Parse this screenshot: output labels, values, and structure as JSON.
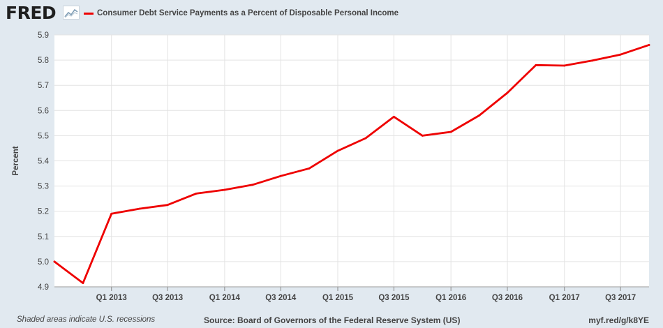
{
  "logo": {
    "text": "FRED"
  },
  "colors": {
    "series": "#ee0000",
    "background": "#e1e9f0",
    "plot": "#ffffff",
    "grid": "#e3e3e3"
  },
  "chart_data": {
    "type": "line",
    "title": "Consumer Debt Service Payments as a Percent of Disposable Personal Income",
    "ylabel": "Percent",
    "xlabel": "",
    "ylim": [
      4.9,
      5.9
    ],
    "yticks": [
      4.9,
      5.0,
      5.1,
      5.2,
      5.3,
      5.4,
      5.5,
      5.6,
      5.7,
      5.8,
      5.9
    ],
    "xlim": [
      "2012-07-01",
      "2017-10-01"
    ],
    "xticks": [
      {
        "label": "Q1 2013",
        "date": "2013-01-01"
      },
      {
        "label": "Q3 2013",
        "date": "2013-07-01"
      },
      {
        "label": "Q1 2014",
        "date": "2014-01-01"
      },
      {
        "label": "Q3 2014",
        "date": "2014-07-01"
      },
      {
        "label": "Q1 2015",
        "date": "2015-01-01"
      },
      {
        "label": "Q3 2015",
        "date": "2015-07-01"
      },
      {
        "label": "Q1 2016",
        "date": "2016-01-01"
      },
      {
        "label": "Q3 2016",
        "date": "2016-07-01"
      },
      {
        "label": "Q1 2017",
        "date": "2017-01-01"
      },
      {
        "label": "Q3 2017",
        "date": "2017-07-01"
      }
    ],
    "grid": true,
    "legend": "top-left",
    "series": [
      {
        "name": "Consumer Debt Service Payments as a Percent of Disposable Personal Income",
        "x": [
          "2012-07-01",
          "2012-10-01",
          "2013-01-01",
          "2013-04-01",
          "2013-07-01",
          "2013-10-01",
          "2014-01-01",
          "2014-04-01",
          "2014-07-01",
          "2014-10-01",
          "2015-01-01",
          "2015-04-01",
          "2015-07-01",
          "2015-10-01",
          "2016-01-01",
          "2016-04-01",
          "2016-07-01",
          "2016-10-01",
          "2017-01-01",
          "2017-04-01",
          "2017-07-01",
          "2017-10-01"
        ],
        "y": [
          5.0,
          4.915,
          5.19,
          5.21,
          5.225,
          5.27,
          5.285,
          5.305,
          5.34,
          5.37,
          5.44,
          5.49,
          5.575,
          5.5,
          5.515,
          5.58,
          5.67,
          5.78,
          5.778,
          5.798,
          5.822,
          5.86
        ]
      }
    ]
  },
  "footer": {
    "recessions": "Shaded areas indicate U.S. recessions",
    "source": "Source: Board of Governors of the Federal Reserve System (US)",
    "link": "myf.red/g/k8YE"
  }
}
